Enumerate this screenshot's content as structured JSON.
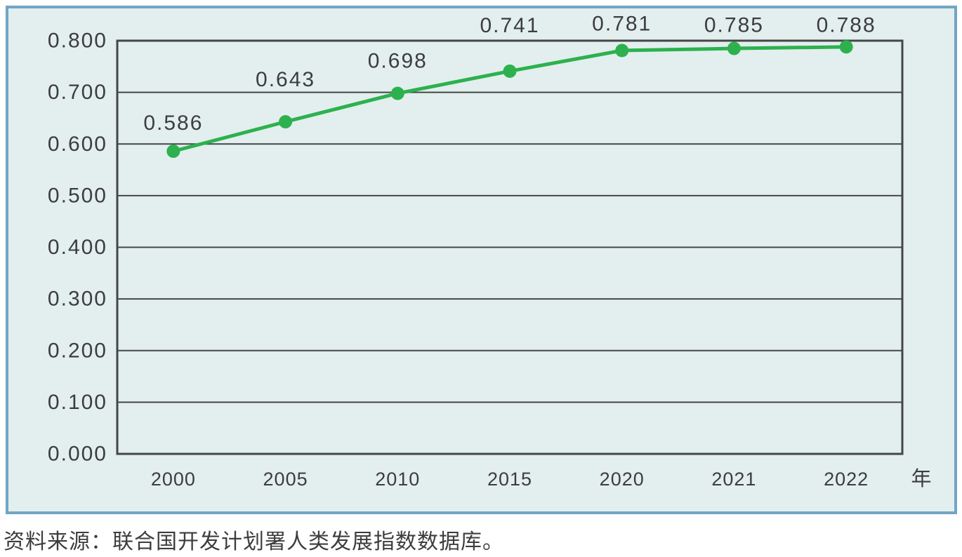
{
  "source_note": "资料来源：联合国开发计划署人类发展指数数据库。",
  "colors": {
    "panel_background": "#e2efee",
    "panel_border": "#72a5c4",
    "line": "#2db14e",
    "grid": "#464646",
    "text": "#3d3d3d"
  },
  "chart_data": {
    "type": "line",
    "categories": [
      "2000",
      "2005",
      "2010",
      "2015",
      "2020",
      "2021",
      "2022"
    ],
    "values": [
      0.586,
      0.643,
      0.698,
      0.741,
      0.781,
      0.785,
      0.788
    ],
    "data_labels": [
      "0.586",
      "0.643",
      "0.698",
      "0.741",
      "0.781",
      "0.785",
      "0.788"
    ],
    "title": "",
    "xlabel": "",
    "ylabel": "",
    "x_unit_label": "年",
    "ylim": [
      0.0,
      0.8
    ],
    "ytick_step": 0.1,
    "ytick_labels": [
      "0.000",
      "0.100",
      "0.200",
      "0.300",
      "0.400",
      "0.500",
      "0.600",
      "0.700",
      "0.800"
    ],
    "grid": "horizontal-on",
    "legend": "none",
    "marker": "circle"
  }
}
